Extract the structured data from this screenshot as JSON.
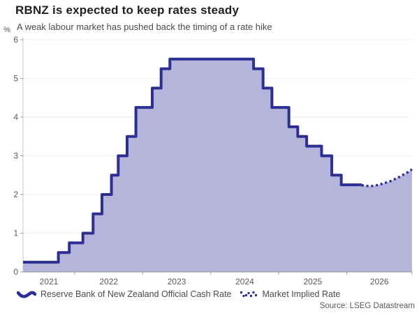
{
  "header": {
    "title": "RBNZ is expected to keep rates steady",
    "subtitle": "A weak labour market has pushed back the timing of a rate hike"
  },
  "source": "Source: LSEG Datastream",
  "legend": [
    {
      "label": "Reserve Bank of New Zealand Official Cash Rate",
      "style": "solid"
    },
    {
      "label": "Market Implied Rate",
      "style": "dotted"
    }
  ],
  "colors": {
    "line": "#2d3092",
    "fill": "#b5b5db",
    "grid": "#efeff4",
    "axis": "#9a9aa2",
    "axis_light": "#c3c3cc",
    "tick_text": "#595959"
  },
  "chart_data": {
    "type": "area",
    "title": "RBNZ is expected to keep rates steady",
    "subtitle": "A weak labour market has pushed back the timing of a rate hike",
    "unit_label": "%",
    "xlabel": "",
    "ylabel": "%",
    "ylim": [
      0,
      6
    ],
    "yticks": [
      0,
      1,
      2,
      3,
      4,
      5,
      6
    ],
    "xticks_years": [
      2021,
      2022,
      2023,
      2024,
      2025,
      2026
    ],
    "x_domain": [
      2021.24,
      2026.96
    ],
    "grid": true,
    "legend_position": "bottom",
    "series": [
      {
        "name": "Reserve Bank of New Zealand Official Cash Rate",
        "style": "step-solid",
        "points": [
          [
            2021.24,
            0.25
          ],
          [
            2021.76,
            0.5
          ],
          [
            2021.92,
            0.75
          ],
          [
            2022.12,
            1.0
          ],
          [
            2022.27,
            1.5
          ],
          [
            2022.4,
            2.0
          ],
          [
            2022.54,
            2.5
          ],
          [
            2022.64,
            3.0
          ],
          [
            2022.77,
            3.5
          ],
          [
            2022.9,
            4.25
          ],
          [
            2023.14,
            4.75
          ],
          [
            2023.27,
            5.25
          ],
          [
            2023.4,
            5.5
          ],
          [
            2024.63,
            5.25
          ],
          [
            2024.77,
            4.75
          ],
          [
            2024.9,
            4.25
          ],
          [
            2025.15,
            3.75
          ],
          [
            2025.28,
            3.5
          ],
          [
            2025.41,
            3.25
          ],
          [
            2025.63,
            3.0
          ],
          [
            2025.78,
            2.5
          ],
          [
            2025.92,
            2.25
          ],
          [
            2026.22,
            2.25
          ]
        ]
      },
      {
        "name": "Market Implied Rate",
        "style": "dotted",
        "points": [
          [
            2026.22,
            2.24
          ],
          [
            2026.3,
            2.22
          ],
          [
            2026.37,
            2.22
          ],
          [
            2026.44,
            2.24
          ],
          [
            2026.51,
            2.27
          ],
          [
            2026.58,
            2.31
          ],
          [
            2026.65,
            2.35
          ],
          [
            2026.71,
            2.4
          ],
          [
            2026.77,
            2.45
          ],
          [
            2026.83,
            2.51
          ],
          [
            2026.89,
            2.57
          ],
          [
            2026.96,
            2.65
          ]
        ]
      }
    ]
  }
}
